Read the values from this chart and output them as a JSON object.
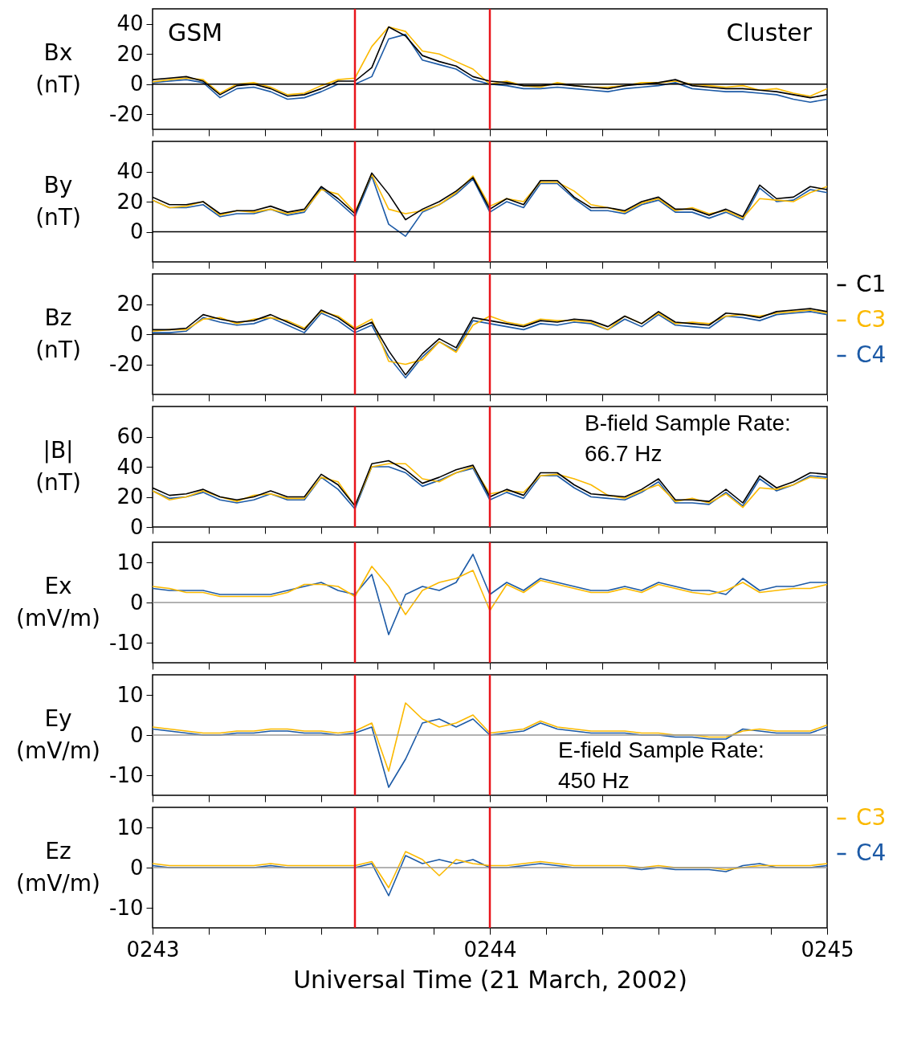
{
  "chart_data": [
    {
      "type": "line",
      "ylabel": "Bx (nT)",
      "annotations": [
        "GSM",
        "Cluster"
      ],
      "tick_labels": "y",
      "xlim": [
        243,
        245
      ],
      "ylim": [
        -30,
        50
      ],
      "yticks": [
        -20,
        0,
        20,
        40
      ],
      "xticks": [
        243,
        243.1667,
        243.3333,
        243.5,
        243.6667,
        243.8333,
        244,
        244.1667,
        244.3333,
        244.5,
        244.6667,
        244.8333,
        245
      ],
      "x": [
        243,
        243.05,
        243.1,
        243.15,
        243.2,
        243.25,
        243.3,
        243.35,
        243.4,
        243.45,
        243.5,
        243.55,
        243.6,
        243.65,
        243.7,
        243.75,
        243.8,
        243.85,
        243.9,
        243.95,
        244,
        244.05,
        244.1,
        244.15,
        244.2,
        244.25,
        244.3,
        244.35,
        244.4,
        244.45,
        244.5,
        244.55,
        244.6,
        244.65,
        244.7,
        244.75,
        244.8,
        244.85,
        244.9,
        244.95,
        245
      ],
      "ref_lines": [
        {
          "axis": "y",
          "value": 0,
          "color": "#000000"
        },
        {
          "axis": "x",
          "value": 243.6,
          "color": "#e8141b"
        },
        {
          "axis": "x",
          "value": 244,
          "color": "#e8141b"
        }
      ],
      "series": [
        {
          "color": "#000000",
          "values": [
            3,
            4,
            5,
            2,
            -7,
            -1,
            0,
            -3,
            -8,
            -7,
            -3,
            2,
            2,
            11,
            38,
            32,
            19,
            15,
            12,
            5,
            2,
            1,
            -1,
            -1,
            0,
            -1,
            -2,
            -3,
            -1,
            0,
            1,
            3,
            -1,
            -2,
            -3,
            -3,
            -4,
            -5,
            -7,
            -9,
            -7
          ]
        },
        {
          "color": "#fbb900",
          "values": [
            1.5,
            3,
            4,
            3,
            -6,
            0,
            1,
            -2,
            -7,
            -6,
            -1,
            3,
            4,
            25,
            38,
            35,
            22,
            20,
            15,
            10,
            0,
            2,
            -1,
            -2,
            1,
            -1,
            -2,
            -2,
            -1,
            1,
            1,
            2,
            0,
            -1,
            -2,
            -1,
            -4,
            -3,
            -6,
            -8,
            -3
          ]
        },
        {
          "color": "#1c5aa6",
          "values": [
            1,
            2,
            3,
            1,
            -9,
            -3,
            -2,
            -5,
            -10,
            -9,
            -5,
            0,
            0,
            5,
            30,
            33,
            16,
            13,
            10,
            3,
            0,
            -1,
            -3,
            -3,
            -2,
            -3,
            -4,
            -5,
            -3,
            -2,
            -1,
            1,
            -3,
            -4,
            -5,
            -5,
            -6,
            -7,
            -10,
            -12,
            -10
          ]
        }
      ]
    },
    {
      "type": "line",
      "ylabel": "By (nT)",
      "tick_labels": "y",
      "xlim": [
        243,
        245
      ],
      "ylim": [
        -20,
        60
      ],
      "yticks": [
        0,
        20,
        40
      ],
      "xticks": [
        243,
        243.1667,
        243.3333,
        243.5,
        243.6667,
        243.8333,
        244,
        244.1667,
        244.3333,
        244.5,
        244.6667,
        244.8333,
        245
      ],
      "x": [
        243,
        243.05,
        243.1,
        243.15,
        243.2,
        243.25,
        243.3,
        243.35,
        243.4,
        243.45,
        243.5,
        243.55,
        243.6,
        243.65,
        243.7,
        243.75,
        243.8,
        243.85,
        243.9,
        243.95,
        244,
        244.05,
        244.1,
        244.15,
        244.2,
        244.25,
        244.3,
        244.35,
        244.4,
        244.45,
        244.5,
        244.55,
        244.6,
        244.65,
        244.7,
        244.75,
        244.8,
        244.85,
        244.9,
        244.95,
        245
      ],
      "ref_lines": [
        {
          "axis": "y",
          "value": 0,
          "color": "#000000"
        },
        {
          "axis": "x",
          "value": 243.6,
          "color": "#e8141b"
        },
        {
          "axis": "x",
          "value": 244,
          "color": "#e8141b"
        }
      ],
      "series": [
        {
          "color": "#000000",
          "values": [
            23,
            18,
            18,
            20,
            12,
            14,
            14,
            17,
            13,
            15,
            30,
            22,
            12,
            39,
            25,
            8,
            15,
            20,
            27,
            36,
            15,
            22,
            18,
            34,
            34,
            23,
            16,
            16,
            14,
            20,
            23,
            15,
            15,
            11,
            15,
            10,
            31,
            22,
            23,
            30,
            28
          ]
        },
        {
          "color": "#fbb900",
          "values": [
            21,
            16,
            17,
            20,
            11,
            14,
            13,
            15,
            12,
            14,
            28,
            25,
            13,
            38,
            15,
            12,
            14,
            18,
            26,
            37,
            17,
            22,
            20,
            33,
            33,
            27,
            18,
            16,
            13,
            19,
            22,
            14,
            16,
            12,
            14,
            9,
            22,
            21,
            20,
            26,
            30
          ]
        },
        {
          "color": "#1c5aa6",
          "values": [
            21,
            16,
            16,
            18,
            10,
            12,
            12,
            15,
            11,
            13,
            29,
            20,
            10,
            37,
            5,
            -3,
            13,
            18,
            25,
            35,
            13,
            20,
            16,
            32,
            32,
            22,
            14,
            14,
            12,
            18,
            21,
            13,
            13,
            9,
            13,
            8,
            29,
            20,
            21,
            28,
            26
          ]
        }
      ]
    },
    {
      "type": "line",
      "ylabel": "Bz (nT)",
      "tick_labels": "y",
      "legend": "right",
      "xlim": [
        243,
        245
      ],
      "ylim": [
        -40,
        40
      ],
      "yticks": [
        -20,
        0,
        20
      ],
      "xticks": [
        243,
        243.1667,
        243.3333,
        243.5,
        243.6667,
        243.8333,
        244,
        244.1667,
        244.3333,
        244.5,
        244.6667,
        244.8333,
        245
      ],
      "x": [
        243,
        243.05,
        243.1,
        243.15,
        243.2,
        243.25,
        243.3,
        243.35,
        243.4,
        243.45,
        243.5,
        243.55,
        243.6,
        243.65,
        243.7,
        243.75,
        243.8,
        243.85,
        243.9,
        243.95,
        244,
        244.05,
        244.1,
        244.15,
        244.2,
        244.25,
        244.3,
        244.35,
        244.4,
        244.45,
        244.5,
        244.55,
        244.6,
        244.65,
        244.7,
        244.75,
        244.8,
        244.85,
        244.9,
        244.95,
        245
      ],
      "ref_lines": [
        {
          "axis": "y",
          "value": 0,
          "color": "#000000"
        },
        {
          "axis": "x",
          "value": 243.6,
          "color": "#e8141b"
        },
        {
          "axis": "x",
          "value": 244,
          "color": "#e8141b"
        }
      ],
      "series": [
        {
          "name": "C1",
          "color": "#000000",
          "values": [
            3,
            3,
            4,
            13,
            10,
            8,
            9,
            13,
            8,
            3,
            16,
            11,
            3,
            8,
            -11,
            -27,
            -13,
            -3,
            -9,
            11,
            9,
            7,
            5,
            9,
            8,
            10,
            9,
            5,
            12,
            7,
            15,
            8,
            7,
            6,
            14,
            13,
            11,
            15,
            16,
            17,
            15
          ]
        },
        {
          "name": "C3",
          "color": "#fbb900",
          "values": [
            2,
            3,
            3,
            10,
            11,
            7,
            10,
            11,
            9,
            4,
            15,
            12,
            4,
            10,
            -18,
            -20,
            -17,
            -5,
            -12,
            6,
            12,
            8,
            6,
            10,
            9,
            9,
            8,
            3,
            12,
            7,
            14,
            7,
            8,
            7,
            12,
            13,
            12,
            14,
            15,
            16,
            14
          ]
        },
        {
          "name": "C4",
          "color": "#1c5aa6",
          "values": [
            1,
            1,
            2,
            11,
            8,
            6,
            7,
            11,
            6,
            1,
            14,
            9,
            1,
            6,
            -15,
            -29,
            -15,
            -5,
            -11,
            9,
            7,
            5,
            3,
            7,
            6,
            8,
            7,
            3,
            10,
            5,
            13,
            6,
            5,
            4,
            12,
            11,
            9,
            13,
            14,
            15,
            13
          ]
        }
      ]
    },
    {
      "type": "line",
      "ylabel": "|B| (nT)",
      "annotations": [
        "B-field Sample Rate:\n66.7 Hz"
      ],
      "tick_labels": "y",
      "xlim": [
        243,
        245
      ],
      "ylim": [
        0,
        80
      ],
      "yticks": [
        0,
        20,
        40,
        60
      ],
      "xticks": [
        243,
        243.1667,
        243.3333,
        243.5,
        243.6667,
        243.8333,
        244,
        244.1667,
        244.3333,
        244.5,
        244.6667,
        244.8333,
        245
      ],
      "x": [
        243,
        243.05,
        243.1,
        243.15,
        243.2,
        243.25,
        243.3,
        243.35,
        243.4,
        243.45,
        243.5,
        243.55,
        243.6,
        243.65,
        243.7,
        243.75,
        243.8,
        243.85,
        243.9,
        243.95,
        244,
        244.05,
        244.1,
        244.15,
        244.2,
        244.25,
        244.3,
        244.35,
        244.4,
        244.45,
        244.5,
        244.55,
        244.6,
        244.65,
        244.7,
        244.75,
        244.8,
        244.85,
        244.9,
        244.95,
        245
      ],
      "ref_lines": [
        {
          "axis": "x",
          "value": 243.6,
          "color": "#e8141b"
        },
        {
          "axis": "x",
          "value": 244,
          "color": "#e8141b"
        }
      ],
      "series": [
        {
          "color": "#000000",
          "values": [
            26,
            21,
            22,
            25,
            20,
            18,
            20,
            24,
            20,
            20,
            35,
            28,
            14,
            42,
            44,
            38,
            29,
            33,
            38,
            41,
            20,
            25,
            21,
            36,
            36,
            28,
            22,
            21,
            20,
            25,
            32,
            18,
            18,
            17,
            25,
            16,
            34,
            26,
            30,
            36,
            35
          ]
        },
        {
          "color": "#fbb900",
          "values": [
            24,
            18,
            20,
            24,
            20,
            17,
            21,
            22,
            19,
            19,
            33,
            30,
            14,
            40,
            42,
            42,
            32,
            30,
            36,
            40,
            22,
            24,
            23,
            34,
            35,
            32,
            28,
            21,
            19,
            24,
            28,
            17,
            19,
            16,
            22,
            13,
            26,
            25,
            28,
            33,
            32
          ]
        },
        {
          "color": "#1c5aa6",
          "values": [
            24,
            19,
            20,
            23,
            18,
            16,
            18,
            22,
            18,
            18,
            33,
            25,
            12,
            40,
            40,
            36,
            27,
            31,
            36,
            39,
            18,
            23,
            19,
            34,
            34,
            26,
            20,
            19,
            18,
            23,
            30,
            16,
            16,
            15,
            23,
            14,
            32,
            24,
            28,
            34,
            33
          ]
        }
      ]
    },
    {
      "type": "line",
      "ylabel": "Ex (mV/m)",
      "tick_labels": "y",
      "xlim": [
        243,
        245
      ],
      "ylim": [
        -15,
        15
      ],
      "yticks": [
        -10,
        0,
        10
      ],
      "xticks": [
        243,
        243.1667,
        243.3333,
        243.5,
        243.6667,
        243.8333,
        244,
        244.1667,
        244.3333,
        244.5,
        244.6667,
        244.8333,
        245
      ],
      "x": [
        243,
        243.05,
        243.1,
        243.15,
        243.2,
        243.25,
        243.3,
        243.35,
        243.4,
        243.45,
        243.5,
        243.55,
        243.6,
        243.65,
        243.7,
        243.75,
        243.8,
        243.85,
        243.9,
        243.95,
        244,
        244.05,
        244.1,
        244.15,
        244.2,
        244.25,
        244.3,
        244.35,
        244.4,
        244.45,
        244.5,
        244.55,
        244.6,
        244.65,
        244.7,
        244.75,
        244.8,
        244.85,
        244.9,
        244.95,
        245
      ],
      "ref_lines": [
        {
          "axis": "y",
          "value": 0,
          "color": "#999999"
        },
        {
          "axis": "x",
          "value": 243.6,
          "color": "#e8141b"
        },
        {
          "axis": "x",
          "value": 244,
          "color": "#e8141b"
        }
      ],
      "series": [
        {
          "color": "#fbb900",
          "values": [
            4,
            3.5,
            2.5,
            2.5,
            1.5,
            1.5,
            1.5,
            1.5,
            2.5,
            4.5,
            4.5,
            4,
            1.5,
            9,
            4,
            -3,
            3,
            5,
            6,
            8,
            -2,
            4.5,
            2.5,
            5.5,
            4.5,
            3.5,
            2.5,
            2.5,
            3.5,
            2.5,
            4.5,
            3.5,
            2.5,
            2,
            3,
            5,
            2.5,
            3,
            3.5,
            3.5,
            4.5
          ]
        },
        {
          "color": "#1c5aa6",
          "values": [
            3.5,
            3,
            3,
            3,
            2,
            2,
            2,
            2,
            3,
            4,
            5,
            3,
            2,
            7,
            -8,
            2,
            4,
            3,
            5,
            12,
            2,
            5,
            3,
            6,
            5,
            4,
            3,
            3,
            4,
            3,
            5,
            4,
            3,
            3,
            2,
            6,
            3,
            4,
            4,
            5,
            5
          ]
        }
      ]
    },
    {
      "type": "line",
      "ylabel": "Ey (mV/m)",
      "annotations": [
        "E-field Sample Rate:\n450 Hz"
      ],
      "tick_labels": "y",
      "xlim": [
        243,
        245
      ],
      "ylim": [
        -15,
        15
      ],
      "yticks": [
        -10,
        0,
        10
      ],
      "xticks": [
        243,
        243.1667,
        243.3333,
        243.5,
        243.6667,
        243.8333,
        244,
        244.1667,
        244.3333,
        244.5,
        244.6667,
        244.8333,
        245
      ],
      "x": [
        243,
        243.05,
        243.1,
        243.15,
        243.2,
        243.25,
        243.3,
        243.35,
        243.4,
        243.45,
        243.5,
        243.55,
        243.6,
        243.65,
        243.7,
        243.75,
        243.8,
        243.85,
        243.9,
        243.95,
        244,
        244.05,
        244.1,
        244.15,
        244.2,
        244.25,
        244.3,
        244.35,
        244.4,
        244.45,
        244.5,
        244.55,
        244.6,
        244.65,
        244.7,
        244.75,
        244.8,
        244.85,
        244.9,
        244.95,
        245
      ],
      "ref_lines": [
        {
          "axis": "y",
          "value": 0,
          "color": "#999999"
        },
        {
          "axis": "x",
          "value": 243.6,
          "color": "#e8141b"
        },
        {
          "axis": "x",
          "value": 244,
          "color": "#e8141b"
        }
      ],
      "series": [
        {
          "color": "#fbb900",
          "values": [
            2,
            1.5,
            1,
            0.5,
            0.5,
            1,
            1,
            1.5,
            1.5,
            1,
            1,
            0.5,
            1,
            3,
            -9,
            8,
            4,
            2,
            3,
            5,
            0.5,
            1,
            1.5,
            3.5,
            2,
            1.5,
            1,
            1,
            1,
            0.5,
            0.5,
            0,
            0,
            -0.5,
            -0.5,
            1,
            1.5,
            1,
            1,
            1,
            2.5
          ]
        },
        {
          "color": "#1c5aa6",
          "values": [
            1.5,
            1,
            0.5,
            0,
            0,
            0.5,
            0.5,
            1,
            1,
            0.5,
            0.5,
            0,
            0.5,
            2,
            -13,
            -6,
            3,
            4,
            2,
            4,
            0,
            0.5,
            1,
            3,
            1.5,
            1,
            0.5,
            0.5,
            0.5,
            0,
            0,
            -0.5,
            -0.5,
            -1,
            -1,
            1.5,
            1,
            0.5,
            0.5,
            0.5,
            2
          ]
        }
      ]
    },
    {
      "type": "line",
      "ylabel": "Ez (mV/m)",
      "xlabel": "Universal Time (21 March, 2002)",
      "legend": "right",
      "xlim": [
        243,
        245
      ],
      "ylim": [
        -15,
        15
      ],
      "yticks": [
        -10,
        0,
        10
      ],
      "xticks": [
        {
          "value": 243,
          "label": "0243"
        },
        {
          "value": 243.1667,
          "label": null
        },
        {
          "value": 243.3333,
          "label": null
        },
        {
          "value": 243.5,
          "label": null
        },
        {
          "value": 243.6667,
          "label": null
        },
        {
          "value": 243.8333,
          "label": null
        },
        {
          "value": 244,
          "label": "0244"
        },
        {
          "value": 244.1667,
          "label": null
        },
        {
          "value": 244.3333,
          "label": null
        },
        {
          "value": 244.5,
          "label": null
        },
        {
          "value": 244.6667,
          "label": null
        },
        {
          "value": 244.8333,
          "label": null
        },
        {
          "value": 245,
          "label": "0245"
        }
      ],
      "x": [
        243,
        243.05,
        243.1,
        243.15,
        243.2,
        243.25,
        243.3,
        243.35,
        243.4,
        243.45,
        243.5,
        243.55,
        243.6,
        243.65,
        243.7,
        243.75,
        243.8,
        243.85,
        243.9,
        243.95,
        244,
        244.05,
        244.1,
        244.15,
        244.2,
        244.25,
        244.3,
        244.35,
        244.4,
        244.45,
        244.5,
        244.55,
        244.6,
        244.65,
        244.7,
        244.75,
        244.8,
        244.85,
        244.9,
        244.95,
        245
      ],
      "ref_lines": [
        {
          "axis": "y",
          "value": 0,
          "color": "#999999"
        },
        {
          "axis": "x",
          "value": 243.6,
          "color": "#e8141b"
        },
        {
          "axis": "x",
          "value": 244,
          "color": "#e8141b"
        }
      ],
      "series": [
        {
          "name": "C3",
          "color": "#fbb900",
          "values": [
            1,
            0.5,
            0.5,
            0.5,
            0.5,
            0.5,
            0.5,
            1,
            0.5,
            0.5,
            0.5,
            0.5,
            0.5,
            1.5,
            -5,
            4,
            2,
            -2,
            2,
            1,
            0.5,
            0.5,
            1,
            1.5,
            1,
            0.5,
            0.5,
            0.5,
            0.5,
            0,
            0.5,
            0,
            0,
            0,
            -0.5,
            0,
            0.5,
            0.5,
            0.5,
            0.5,
            1
          ]
        },
        {
          "name": "C4",
          "color": "#1c5aa6",
          "values": [
            0.5,
            0,
            0,
            0,
            0,
            0,
            0,
            0.5,
            0,
            0,
            0,
            0,
            0,
            1,
            -7,
            3,
            1,
            2,
            1,
            2,
            0,
            0,
            0.5,
            1,
            0.5,
            0,
            0,
            0,
            0,
            -0.5,
            0,
            -0.5,
            -0.5,
            -0.5,
            -1,
            0.5,
            1,
            0,
            0,
            0,
            0.5
          ]
        }
      ]
    }
  ]
}
